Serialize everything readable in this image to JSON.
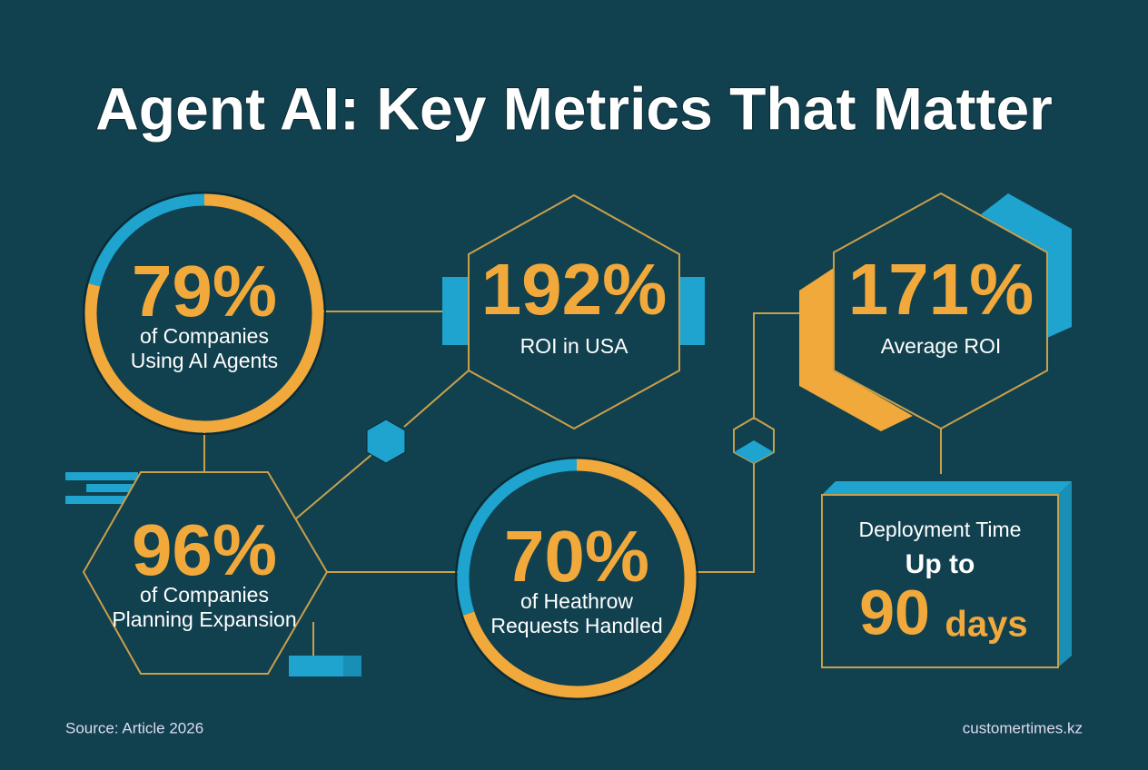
{
  "title": "Agent AI: Key Metrics That Matter",
  "metrics": [
    {
      "value": 79,
      "label": "79%",
      "caption": [
        "of Companies",
        "Using AI Agents"
      ]
    },
    {
      "label": "192%",
      "caption": [
        "ROI in USA"
      ]
    },
    {
      "label": "171%",
      "caption": [
        "Average ROI"
      ]
    },
    {
      "label": "96%",
      "caption": [
        "of Companies",
        "Planning Expansion"
      ]
    },
    {
      "value": 70,
      "label": "70%",
      "caption": [
        "of Heathrow",
        "Requests Handled"
      ]
    }
  ],
  "deployment": {
    "heading": "Deployment Time",
    "prefix": "Up to",
    "number": "90",
    "unit": "days"
  },
  "footer": {
    "source": "Source: Article 2026",
    "site": "customertimes.kz"
  }
}
